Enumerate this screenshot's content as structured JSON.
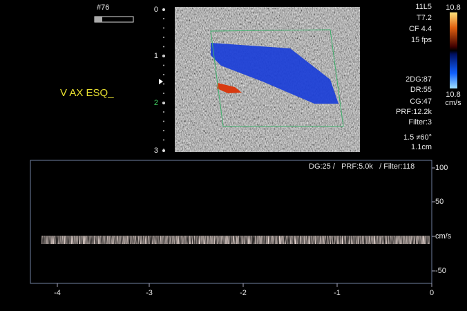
{
  "header": {
    "frame": "#76"
  },
  "depth_scale": [
    "0",
    "1",
    "2",
    "3"
  ],
  "probe_info": [
    "11L5",
    "T7.2",
    "CF 4.4",
    "15 fps"
  ],
  "settings": [
    "2DG:87",
    "DR:55",
    "CG:47",
    "PRF:12.2k",
    "Filter:3",
    "1.5 ≠60°",
    "1.1cm"
  ],
  "color_scale": {
    "top": "10.8",
    "bottom": "10.8",
    "unit": "cm/s"
  },
  "annotation": "V AX ESQ_",
  "spectrum": {
    "header": "DG:25 /   PRF:5.0k   / Filter:118",
    "velocity_ticks": [
      "100",
      "50",
      "cm/s",
      "-50"
    ],
    "time_ticks": [
      "-4",
      "-3",
      "-2",
      "-1",
      "0"
    ]
  }
}
